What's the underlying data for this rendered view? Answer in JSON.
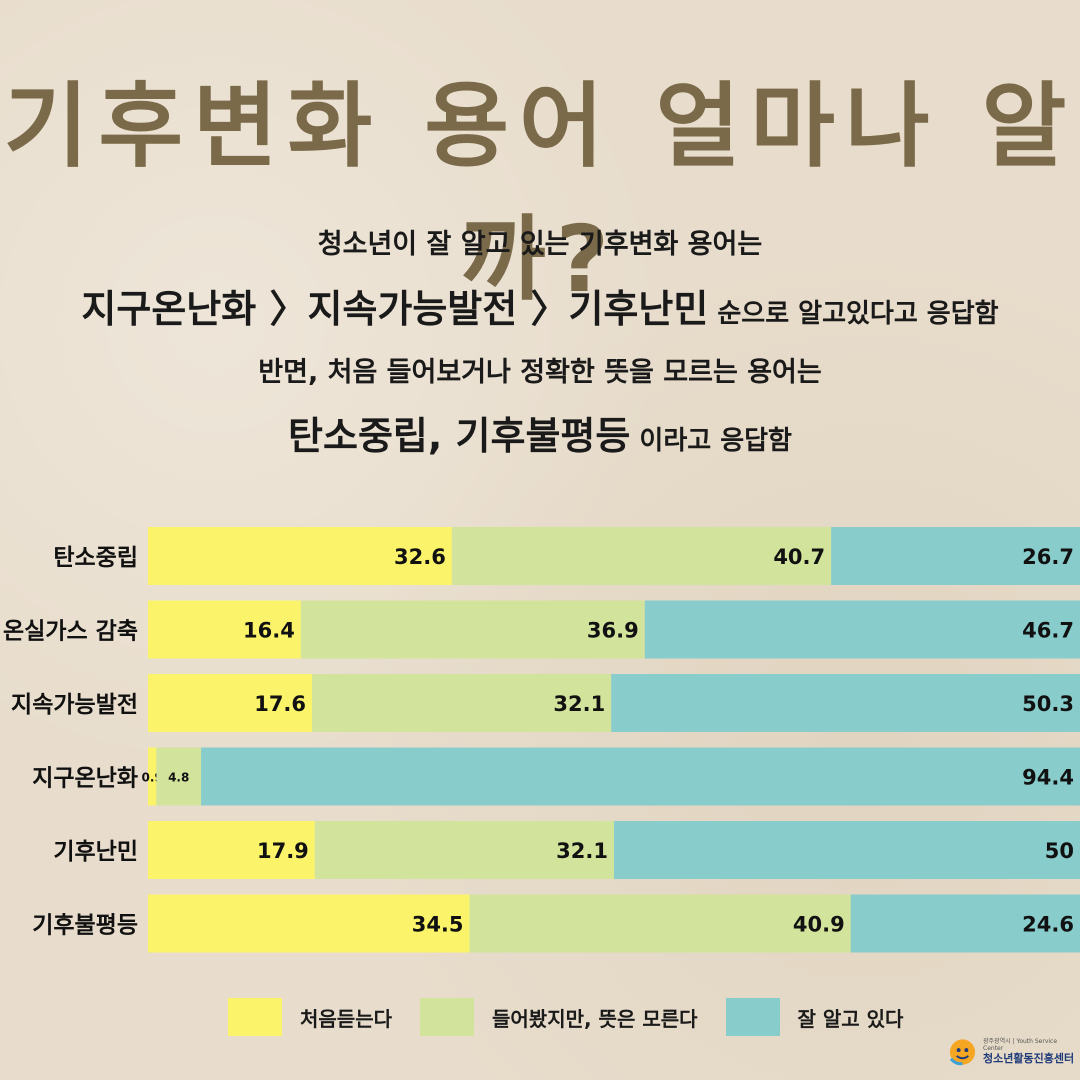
{
  "title": "기후변화 용어 얼마나 알까?",
  "summary": {
    "line1": "청소년이 잘 알고 있는 기후변화 용어는",
    "line2_strong": "지구온난화 〉지속가능발전 〉기후난민",
    "line2_rest": " 순으로 알고있다고 응답함",
    "line3": "반면, 처음 들어보거나 정확한 뜻을 모르는 용어는",
    "line4_strong": "탄소중립, 기후불평등",
    "line4_rest": " 이라고 응답함"
  },
  "colors": {
    "first_time": "#fbf46a",
    "heard": "#d2e39c",
    "know_well": "#88cccb",
    "title": "#7a6a4a"
  },
  "chart_data": {
    "type": "bar",
    "orientation": "horizontal",
    "stacked": true,
    "categories": [
      "탄소중립",
      "온실가스 감축",
      "지속가능발전",
      "지구온난화",
      "기후난민",
      "기후불평등"
    ],
    "series": [
      {
        "name": "처음듣는다",
        "values": [
          32.6,
          16.4,
          17.6,
          0.9,
          17.9,
          34.5
        ]
      },
      {
        "name": "들어봤지만, 뜻은 모른다",
        "values": [
          40.7,
          36.9,
          32.1,
          4.8,
          32.1,
          40.9
        ]
      },
      {
        "name": "잘 알고 있다",
        "values": [
          26.7,
          46.7,
          50.3,
          94.4,
          50,
          24.6
        ]
      }
    ],
    "data_labels": [
      [
        "32.6",
        "40.7",
        "26.7"
      ],
      [
        "16.4",
        "36.9",
        "46.7"
      ],
      [
        "17.6",
        "32.1",
        "50.3"
      ],
      [
        "0.9",
        "4.8",
        "94.4"
      ],
      [
        "17.9",
        "32.1",
        "50"
      ],
      [
        "34.5",
        "40.9",
        "24.6"
      ]
    ],
    "legend_position": "bottom",
    "grid": false
  },
  "legend": [
    {
      "label": "처음듣는다"
    },
    {
      "label": "들어봤지만, 뜻은 모른다"
    },
    {
      "label": "잘 알고 있다"
    }
  ],
  "logo": {
    "sub": "광주광역시 | Youth Service Center",
    "name": "청소년활동진흥센터"
  }
}
